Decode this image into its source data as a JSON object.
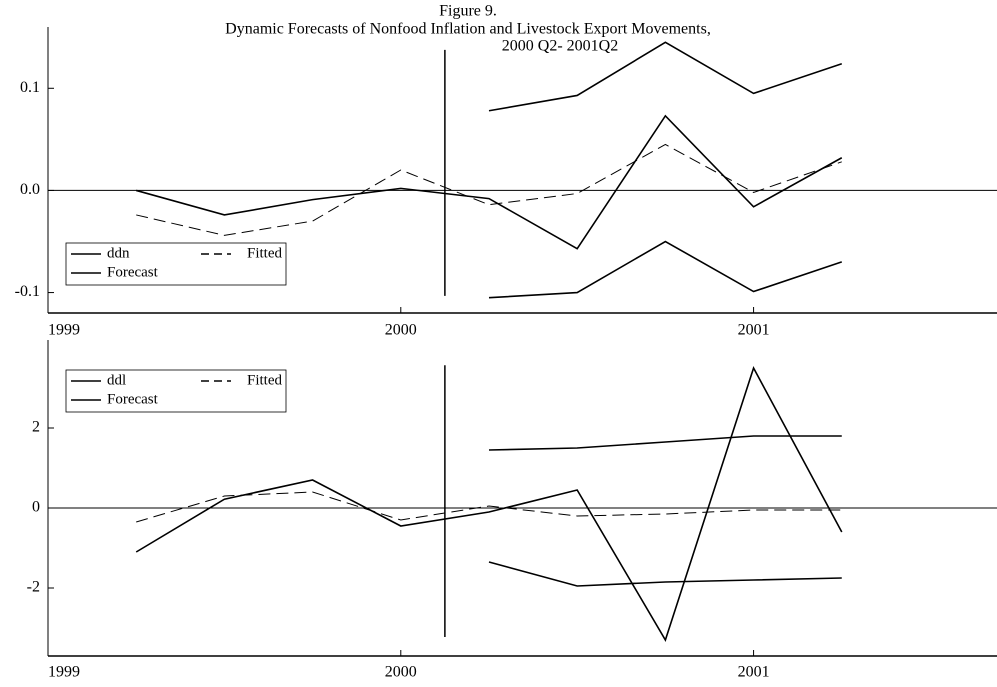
{
  "figure": {
    "title_lines": [
      "Figure 9.",
      "Dynamic Forecasts of Nonfood Inflation and Livestock Export Movements,",
      "2000 Q2- 2001Q2"
    ]
  },
  "chart_data": [
    {
      "type": "line",
      "x": [
        1999.25,
        1999.5,
        1999.75,
        2000,
        2000.25,
        2000.5,
        2000.75,
        2001,
        2001.25
      ],
      "series": [
        {
          "name": "ddn",
          "color": "#000000",
          "style": "solid",
          "values": [
            0.0,
            -0.024,
            -0.009,
            0.002,
            -0.008,
            -0.057,
            0.073,
            -0.016,
            0.032
          ]
        },
        {
          "name": "Fitted",
          "color": "#000000",
          "style": "dashed",
          "values": [
            -0.024,
            -0.044,
            -0.03,
            0.02,
            -0.014,
            -0.003,
            0.045,
            -0.002,
            0.028
          ]
        },
        {
          "name": "Forecast",
          "color": "#000000",
          "style": "solid",
          "lower": [
            null,
            null,
            null,
            null,
            -0.105,
            -0.1,
            -0.05,
            -0.099,
            -0.07
          ],
          "upper": [
            null,
            null,
            null,
            null,
            0.078,
            0.093,
            0.145,
            0.095,
            0.124
          ]
        }
      ],
      "forecast_start": 2000.125,
      "xlim": [
        1999,
        2001.69
      ],
      "xticks": [
        1999,
        2000,
        2001
      ],
      "ylim": [
        -0.12,
        0.16
      ],
      "yticks": [
        -0.1,
        {
          "value": 0,
          "label": "0.0"
        },
        0.1
      ],
      "zero_line": true,
      "legend": "lower-left"
    },
    {
      "type": "line",
      "x": [
        1999.25,
        1999.5,
        1999.75,
        2000,
        2000.25,
        2000.5,
        2000.75,
        2001,
        2001.25
      ],
      "series": [
        {
          "name": "ddl",
          "color": "#000000",
          "style": "solid",
          "values": [
            -1.1,
            0.22,
            0.7,
            -0.45,
            -0.1,
            0.45,
            -3.3,
            3.5,
            -0.6
          ]
        },
        {
          "name": "Fitted",
          "color": "#000000",
          "style": "dashed",
          "values": [
            -0.35,
            0.3,
            0.4,
            -0.3,
            0.05,
            -0.2,
            -0.15,
            -0.05,
            -0.05
          ]
        },
        {
          "name": "Forecast",
          "color": "#000000",
          "style": "solid",
          "lower": [
            null,
            null,
            null,
            null,
            -1.35,
            -1.95,
            -1.85,
            -1.8,
            -1.75
          ],
          "upper": [
            null,
            null,
            null,
            null,
            1.45,
            1.5,
            1.65,
            1.8,
            1.8
          ]
        }
      ],
      "forecast_start": 2000.125,
      "xlim": [
        1999,
        2001.69
      ],
      "xticks": [
        1999,
        2000,
        2001
      ],
      "ylim": [
        -3.7,
        4.2
      ],
      "yticks": [
        -2,
        0,
        2
      ],
      "zero_line": true,
      "legend": "upper-left"
    }
  ]
}
